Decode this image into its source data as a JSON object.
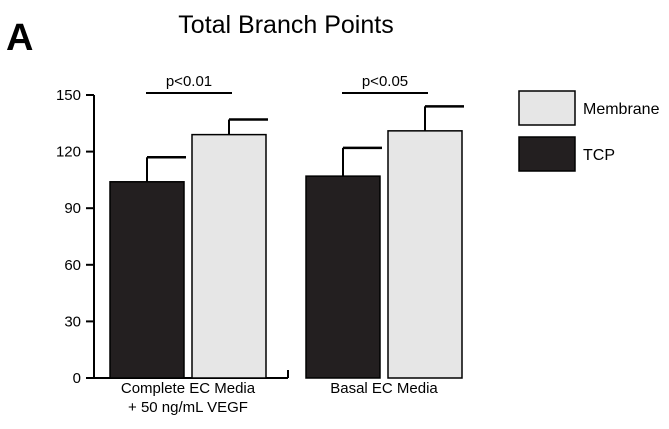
{
  "panel_label": "A",
  "chart_data": {
    "type": "bar",
    "title": "Total Branch Points",
    "xlabel": "",
    "ylabel": "",
    "ylim": [
      0,
      150
    ],
    "yticks": [
      0,
      30,
      60,
      90,
      120,
      150
    ],
    "categories": [
      [
        "Complete EC Media",
        "+ 50 ng/mL VEGF"
      ],
      [
        "Basal EC Media"
      ]
    ],
    "series": [
      {
        "name": "TCP",
        "color": "#231f20",
        "values": [
          104,
          107
        ],
        "errors": [
          13,
          15
        ]
      },
      {
        "name": "Membrane",
        "color": "#e6e6e6",
        "values": [
          129,
          131
        ],
        "errors": [
          8,
          13
        ]
      }
    ],
    "significance": [
      "p<0.01",
      "p<0.05"
    ],
    "legend": {
      "placement": "right",
      "order": [
        "Membrane",
        "TCP"
      ]
    },
    "grid": false
  }
}
